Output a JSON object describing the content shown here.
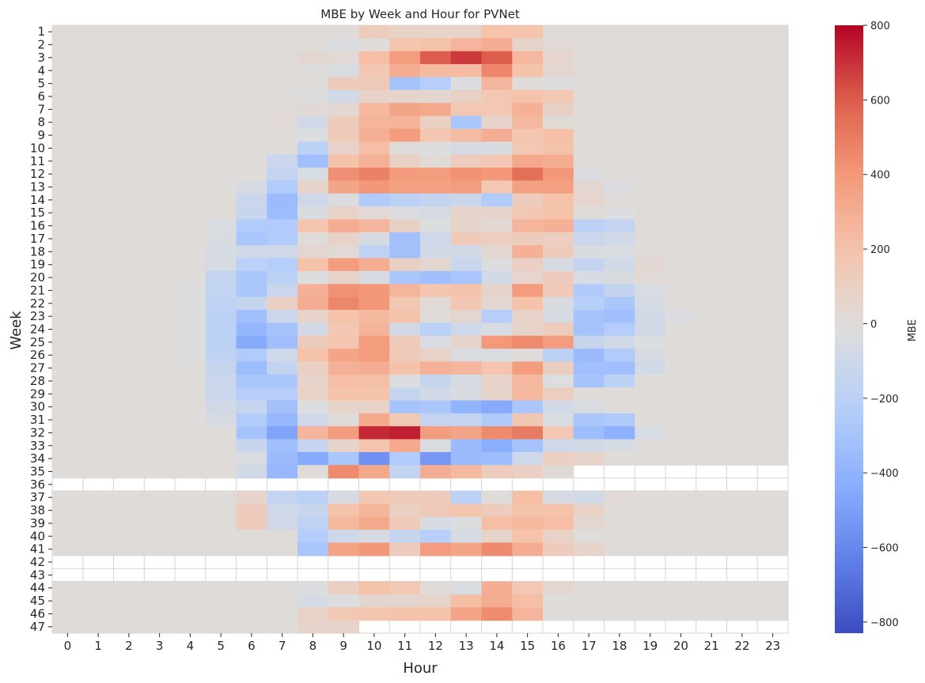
{
  "chart_data": {
    "type": "heatmap",
    "title": "MBE by Week and Hour for PVNet",
    "xlabel": "Hour",
    "ylabel": "Week",
    "colorbar_label": "MBE",
    "colormap": "coolwarm",
    "vmin": -830,
    "vmax": 800,
    "colorbar_ticks": [
      -800,
      -600,
      -400,
      -200,
      0,
      200,
      400,
      600,
      800
    ],
    "colorbar_tick_labels": [
      "−800",
      "−600",
      "−400",
      "−200",
      "0",
      "200",
      "400",
      "600",
      "800"
    ],
    "x": [
      0,
      1,
      2,
      3,
      4,
      5,
      6,
      7,
      8,
      9,
      10,
      11,
      12,
      13,
      14,
      15,
      16,
      17,
      18,
      19,
      20,
      21,
      22,
      23
    ],
    "x_tick_labels": [
      "0",
      "1",
      "2",
      "3",
      "4",
      "5",
      "6",
      "7",
      "8",
      "9",
      "10",
      "11",
      "12",
      "13",
      "14",
      "15",
      "16",
      "17",
      "18",
      "19",
      "20",
      "21",
      "22",
      "23"
    ],
    "y": [
      1,
      2,
      3,
      4,
      5,
      6,
      7,
      8,
      9,
      10,
      11,
      12,
      13,
      14,
      15,
      16,
      17,
      18,
      19,
      20,
      21,
      22,
      23,
      24,
      25,
      26,
      27,
      28,
      29,
      30,
      31,
      32,
      33,
      34,
      35,
      36,
      37,
      38,
      39,
      40,
      41,
      42,
      43,
      44,
      45,
      46,
      47
    ],
    "y_tick_labels": [
      "1",
      "2",
      "3",
      "4",
      "5",
      "6",
      "7",
      "8",
      "9",
      "10",
      "11",
      "12",
      "13",
      "14",
      "15",
      "16",
      "17",
      "18",
      "19",
      "20",
      "21",
      "22",
      "23",
      "24",
      "25",
      "26",
      "27",
      "28",
      "29",
      "30",
      "31",
      "32",
      "33",
      "34",
      "35",
      "36",
      "37",
      "38",
      "39",
      "40",
      "41",
      "42",
      "43",
      "44",
      "45",
      "46",
      "47"
    ],
    "missing_value_note": "null = no data",
    "values": [
      [
        0,
        0,
        0,
        0,
        0,
        0,
        0,
        0,
        0,
        0,
        120,
        80,
        60,
        80,
        200,
        190,
        0,
        0,
        0,
        0,
        0,
        0,
        0,
        0
      ],
      [
        0,
        0,
        0,
        0,
        0,
        0,
        0,
        0,
        0,
        -30,
        0,
        180,
        200,
        260,
        300,
        60,
        20,
        0,
        0,
        0,
        0,
        0,
        0,
        0
      ],
      [
        0,
        0,
        0,
        0,
        0,
        0,
        0,
        0,
        40,
        20,
        220,
        380,
        600,
        680,
        600,
        250,
        50,
        0,
        0,
        0,
        0,
        0,
        0,
        0
      ],
      [
        0,
        0,
        0,
        0,
        0,
        0,
        0,
        0,
        -10,
        -40,
        160,
        300,
        230,
        230,
        460,
        200,
        40,
        0,
        0,
        0,
        0,
        0,
        0,
        0
      ],
      [
        0,
        0,
        0,
        0,
        0,
        0,
        0,
        0,
        0,
        120,
        140,
        -300,
        -230,
        -20,
        260,
        0,
        -10,
        0,
        0,
        0,
        0,
        0,
        0,
        0
      ],
      [
        0,
        0,
        0,
        0,
        0,
        0,
        0,
        0,
        -20,
        -80,
        80,
        60,
        40,
        90,
        160,
        200,
        160,
        0,
        0,
        0,
        0,
        0,
        0,
        0
      ],
      [
        0,
        0,
        0,
        0,
        0,
        0,
        0,
        10,
        20,
        30,
        240,
        340,
        320,
        160,
        160,
        280,
        90,
        0,
        0,
        0,
        0,
        0,
        0,
        0
      ],
      [
        0,
        0,
        0,
        0,
        0,
        0,
        0,
        20,
        -80,
        120,
        260,
        270,
        100,
        -280,
        60,
        250,
        10,
        0,
        0,
        0,
        0,
        0,
        0,
        0
      ],
      [
        0,
        0,
        0,
        0,
        0,
        0,
        0,
        0,
        -20,
        140,
        290,
        380,
        170,
        230,
        300,
        170,
        210,
        0,
        0,
        0,
        0,
        0,
        0,
        0
      ],
      [
        0,
        0,
        0,
        0,
        0,
        0,
        0,
        0,
        -200,
        80,
        220,
        0,
        -20,
        -60,
        -40,
        160,
        200,
        0,
        0,
        0,
        0,
        0,
        0,
        0
      ],
      [
        0,
        0,
        0,
        0,
        0,
        0,
        0,
        -120,
        -330,
        200,
        280,
        90,
        10,
        120,
        160,
        320,
        300,
        0,
        0,
        0,
        0,
        0,
        0,
        0
      ],
      [
        0,
        0,
        0,
        0,
        0,
        0,
        0,
        -150,
        -50,
        430,
        480,
        380,
        380,
        420,
        400,
        540,
        400,
        -30,
        0,
        0,
        0,
        0,
        0,
        0
      ],
      [
        0,
        0,
        0,
        0,
        0,
        0,
        -60,
        -250,
        60,
        340,
        400,
        360,
        360,
        380,
        160,
        360,
        360,
        40,
        -30,
        0,
        0,
        0,
        0,
        0
      ],
      [
        0,
        0,
        0,
        0,
        0,
        0,
        -120,
        -350,
        -100,
        -30,
        -250,
        -200,
        -150,
        -120,
        -250,
        120,
        200,
        50,
        0,
        0,
        0,
        0,
        0,
        0
      ],
      [
        0,
        0,
        0,
        0,
        0,
        0,
        -130,
        -340,
        -40,
        80,
        20,
        -30,
        -60,
        60,
        60,
        160,
        200,
        0,
        -20,
        10,
        0,
        0,
        0,
        0
      ],
      [
        0,
        0,
        0,
        0,
        0,
        -40,
        -250,
        -250,
        180,
        300,
        260,
        90,
        -20,
        60,
        30,
        260,
        280,
        -200,
        -150,
        0,
        0,
        0,
        0,
        0
      ],
      [
        0,
        0,
        0,
        0,
        0,
        -40,
        -280,
        -250,
        0,
        80,
        -60,
        -320,
        -100,
        140,
        110,
        120,
        110,
        -120,
        -80,
        0,
        0,
        0,
        0,
        0
      ],
      [
        0,
        0,
        0,
        0,
        0,
        -60,
        -100,
        -100,
        40,
        20,
        -180,
        -320,
        -80,
        -80,
        40,
        280,
        120,
        -40,
        -40,
        0,
        0,
        0,
        0,
        0
      ],
      [
        0,
        0,
        0,
        0,
        0,
        -60,
        -200,
        -240,
        200,
        380,
        300,
        90,
        40,
        -120,
        -20,
        100,
        -60,
        -150,
        -80,
        30,
        0,
        0,
        0,
        0
      ],
      [
        0,
        0,
        0,
        0,
        0,
        -160,
        -280,
        -200,
        -20,
        60,
        -60,
        -280,
        -330,
        -290,
        -80,
        50,
        120,
        -50,
        -40,
        20,
        0,
        0,
        0,
        0
      ],
      [
        0,
        0,
        0,
        0,
        -20,
        -160,
        -280,
        -120,
        280,
        420,
        400,
        260,
        180,
        200,
        60,
        380,
        140,
        -250,
        -150,
        -50,
        0,
        0,
        0,
        0
      ],
      [
        0,
        0,
        0,
        0,
        -20,
        -180,
        -140,
        100,
        300,
        460,
        400,
        160,
        20,
        160,
        30,
        200,
        -40,
        -220,
        -280,
        -60,
        0,
        0,
        0,
        0
      ],
      [
        0,
        0,
        0,
        0,
        -20,
        -200,
        -330,
        -120,
        60,
        200,
        240,
        200,
        0,
        40,
        -230,
        80,
        -60,
        -300,
        -330,
        -80,
        -30,
        0,
        0,
        0
      ],
      [
        0,
        0,
        0,
        0,
        -20,
        -200,
        -380,
        -300,
        -80,
        160,
        260,
        -80,
        -200,
        -100,
        -50,
        60,
        120,
        -300,
        -240,
        -80,
        0,
        0,
        0,
        0
      ],
      [
        0,
        0,
        0,
        0,
        -20,
        -200,
        -450,
        -330,
        120,
        180,
        380,
        140,
        -40,
        60,
        400,
        450,
        380,
        -130,
        -80,
        -20,
        0,
        0,
        0,
        0
      ],
      [
        0,
        0,
        0,
        0,
        -20,
        -180,
        -250,
        -100,
        200,
        340,
        380,
        140,
        80,
        -40,
        -40,
        0,
        -200,
        -350,
        -250,
        -60,
        0,
        0,
        0,
        0
      ],
      [
        0,
        0,
        0,
        0,
        0,
        -140,
        -340,
        -160,
        100,
        280,
        300,
        200,
        280,
        260,
        180,
        380,
        110,
        -330,
        -330,
        -80,
        0,
        0,
        0,
        0
      ],
      [
        0,
        0,
        0,
        0,
        0,
        -120,
        -280,
        -280,
        60,
        220,
        210,
        -20,
        -140,
        -60,
        70,
        250,
        -20,
        -300,
        -200,
        0,
        0,
        0,
        0,
        0
      ],
      [
        0,
        0,
        0,
        0,
        0,
        -120,
        -230,
        -230,
        80,
        200,
        200,
        -140,
        -80,
        -40,
        60,
        240,
        110,
        0,
        0,
        0,
        0,
        0,
        0,
        0
      ],
      [
        0,
        0,
        0,
        0,
        0,
        -80,
        -140,
        -320,
        -20,
        60,
        80,
        -300,
        -280,
        -400,
        -450,
        -280,
        -80,
        -40,
        0,
        0,
        0,
        0,
        0,
        0
      ],
      [
        0,
        0,
        0,
        0,
        0,
        -60,
        -250,
        -370,
        -100,
        0,
        320,
        150,
        -150,
        -160,
        -260,
        160,
        -40,
        -280,
        -260,
        0,
        0,
        0,
        0,
        0
      ],
      [
        0,
        0,
        0,
        0,
        0,
        0,
        -300,
        -480,
        260,
        380,
        720,
        740,
        380,
        340,
        450,
        500,
        160,
        -340,
        -420,
        -50,
        0,
        0,
        0,
        0
      ],
      [
        0,
        0,
        0,
        0,
        0,
        0,
        -130,
        -330,
        -150,
        60,
        180,
        320,
        -40,
        -350,
        -430,
        -300,
        -100,
        -80,
        -60,
        0,
        0,
        0,
        0,
        0
      ],
      [
        0,
        0,
        0,
        0,
        0,
        0,
        -40,
        -350,
        -450,
        -280,
        -560,
        -250,
        -530,
        -350,
        -340,
        -100,
        100,
        60,
        0,
        0,
        0,
        0,
        0,
        0
      ],
      [
        0,
        0,
        0,
        0,
        0,
        0,
        -80,
        -380,
        0,
        450,
        320,
        -160,
        300,
        240,
        120,
        100,
        20,
        null,
        null,
        null,
        null,
        null,
        null,
        null
      ],
      [
        null,
        null,
        null,
        null,
        null,
        null,
        null,
        null,
        null,
        null,
        null,
        null,
        null,
        null,
        null,
        null,
        null,
        null,
        null,
        null,
        null,
        null,
        null,
        null
      ],
      [
        0,
        0,
        0,
        0,
        0,
        0,
        60,
        -150,
        -200,
        -60,
        160,
        140,
        120,
        -200,
        0,
        220,
        -60,
        -80,
        20,
        0,
        0,
        0,
        0,
        0
      ],
      [
        0,
        0,
        0,
        0,
        0,
        0,
        120,
        -100,
        -130,
        200,
        260,
        100,
        140,
        180,
        120,
        200,
        200,
        80,
        0,
        0,
        0,
        0,
        0,
        0
      ],
      [
        0,
        0,
        0,
        0,
        0,
        0,
        120,
        -100,
        -180,
        240,
        320,
        140,
        -50,
        -20,
        220,
        240,
        220,
        40,
        0,
        0,
        0,
        0,
        0,
        0
      ],
      [
        0,
        0,
        0,
        0,
        0,
        0,
        0,
        0,
        -240,
        -100,
        -60,
        -140,
        -220,
        -60,
        60,
        200,
        80,
        0,
        0,
        0,
        0,
        0,
        0,
        0
      ],
      [
        0,
        0,
        0,
        0,
        0,
        0,
        0,
        0,
        -280,
        350,
        400,
        120,
        380,
        340,
        450,
        300,
        120,
        60,
        0,
        0,
        0,
        0,
        0,
        0
      ],
      [
        null,
        null,
        null,
        null,
        null,
        null,
        null,
        null,
        null,
        null,
        null,
        null,
        null,
        null,
        null,
        null,
        null,
        null,
        null,
        null,
        null,
        null,
        null,
        null
      ],
      [
        null,
        null,
        null,
        null,
        null,
        null,
        null,
        null,
        null,
        null,
        null,
        null,
        null,
        null,
        null,
        null,
        null,
        null,
        null,
        null,
        null,
        null,
        null,
        null
      ],
      [
        0,
        0,
        0,
        0,
        0,
        0,
        0,
        0,
        -20,
        100,
        200,
        160,
        0,
        -40,
        300,
        160,
        40,
        0,
        0,
        0,
        0,
        0,
        0,
        0
      ],
      [
        0,
        0,
        0,
        0,
        0,
        0,
        0,
        0,
        -60,
        -20,
        40,
        40,
        60,
        220,
        300,
        220,
        0,
        0,
        0,
        0,
        0,
        0,
        0,
        0
      ],
      [
        0,
        0,
        0,
        0,
        0,
        0,
        0,
        0,
        80,
        160,
        180,
        200,
        200,
        340,
        440,
        260,
        0,
        0,
        0,
        0,
        0,
        0,
        0,
        0
      ],
      [
        0,
        0,
        0,
        0,
        0,
        0,
        0,
        0,
        60,
        60,
        null,
        null,
        null,
        null,
        null,
        null,
        null,
        null,
        null,
        null,
        null,
        null,
        null,
        null
      ]
    ]
  }
}
